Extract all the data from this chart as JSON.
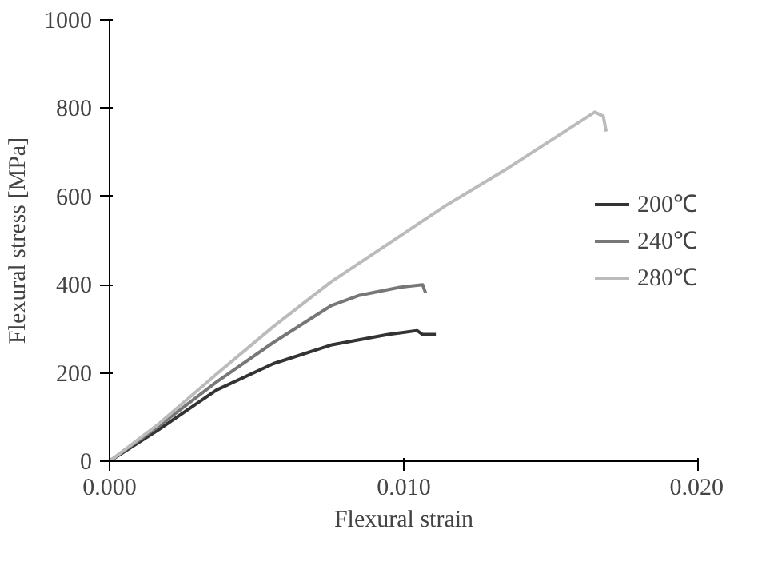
{
  "chart_data": {
    "type": "line",
    "xlabel": "Flexural strain",
    "ylabel": "Flexural stress [MPa]",
    "xlim": [
      0,
      0.02
    ],
    "ylim": [
      0,
      1000
    ],
    "xticks": [
      {
        "value": 0,
        "label": "0.000"
      },
      {
        "value": 0.01,
        "label": "0.010"
      },
      {
        "value": 0.02,
        "label": "0.020"
      }
    ],
    "yticks": [
      0,
      200,
      400,
      600,
      800,
      1000
    ],
    "grid": false,
    "legend": "right",
    "marker": "none",
    "line_style": "solid",
    "series": [
      {
        "name": "200℃",
        "color": "#333333",
        "x": [
          0,
          0.00168,
          0.00363,
          0.00557,
          0.00752,
          0.00947,
          0.01045,
          0.01064,
          0.01109
        ],
        "values": [
          0,
          72,
          161,
          221,
          263,
          287,
          296,
          287,
          287
        ]
      },
      {
        "name": "240℃",
        "color": "#777777",
        "x": [
          0,
          0.00168,
          0.00363,
          0.00557,
          0.00752,
          0.0085,
          0.00986,
          0.01064,
          0.01074
        ],
        "values": [
          0,
          80,
          179,
          269,
          352,
          376,
          394,
          400,
          381
        ]
      },
      {
        "name": "280℃",
        "color": "#bbbbbb",
        "x": [
          0,
          0.00168,
          0.00363,
          0.00557,
          0.00752,
          0.01142,
          0.01337,
          0.01649,
          0.01678,
          0.01688
        ],
        "values": [
          0,
          85,
          197,
          305,
          406,
          579,
          657,
          791,
          782,
          747
        ]
      }
    ]
  }
}
